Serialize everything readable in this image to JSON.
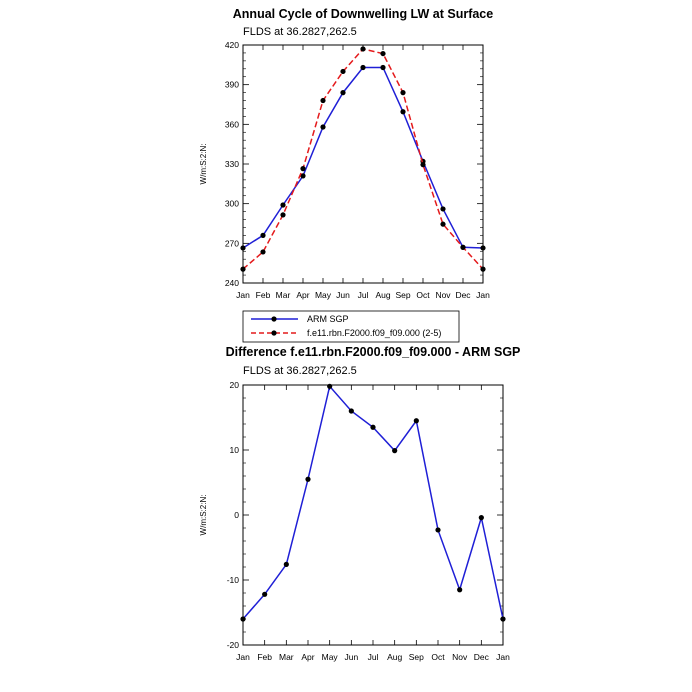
{
  "colors": {
    "arm": "#1f1fd6",
    "model": "#e41a1c",
    "marker": "#000000",
    "axis": "#000000"
  },
  "legend": {
    "placement": "below top chart",
    "entries": [
      "ARM SGP",
      "f.e11.rbn.F2000.f09_f09.000 (2-5)"
    ]
  },
  "chart_data": [
    {
      "type": "line",
      "title": "Annual Cycle of Downwelling LW at Surface",
      "subtitle": "FLDS at 36.2827,262.5",
      "xlabel": "",
      "ylabel": "W/m:S:2:N:",
      "categories": [
        "Jan",
        "Feb",
        "Mar",
        "Apr",
        "May",
        "Jun",
        "Jul",
        "Aug",
        "Sep",
        "Oct",
        "Nov",
        "Dec",
        "Jan"
      ],
      "ylim": [
        240,
        420
      ],
      "yticks": [
        240,
        270,
        300,
        330,
        360,
        390,
        420
      ],
      "grid": false,
      "series": [
        {
          "name": "ARM SGP",
          "style": "solid",
          "color": "#1f1fd6",
          "values": [
            266.5,
            276,
            299,
            321,
            358,
            384,
            403,
            403,
            369.5,
            332,
            296,
            267,
            266.5
          ]
        },
        {
          "name": "f.e11.rbn.F2000.f09_f09.000 (2-5)",
          "style": "dashed",
          "color": "#e41a1c",
          "values": [
            250.5,
            263.5,
            291.5,
            326.5,
            378,
            400,
            417,
            413.5,
            384,
            329.5,
            284.5,
            267,
            250.5
          ]
        }
      ]
    },
    {
      "type": "line",
      "title": "Difference f.e11.rbn.F2000.f09_f09.000 - ARM SGP",
      "subtitle": "FLDS at 36.2827,262.5",
      "xlabel": "",
      "ylabel": "W/m:S:2:N:",
      "categories": [
        "Jan",
        "Feb",
        "Mar",
        "Apr",
        "May",
        "Jun",
        "Jul",
        "Aug",
        "Sep",
        "Oct",
        "Nov",
        "Dec",
        "Jan"
      ],
      "ylim": [
        -20,
        20
      ],
      "yticks": [
        -20,
        -10,
        0,
        10,
        20
      ],
      "grid": false,
      "series": [
        {
          "color": "#1f1fd6",
          "values": [
            -16,
            -12.2,
            -7.6,
            5.5,
            19.8,
            16,
            13.5,
            9.9,
            14.5,
            -2.3,
            -11.5,
            -0.4,
            -16
          ]
        }
      ]
    }
  ]
}
